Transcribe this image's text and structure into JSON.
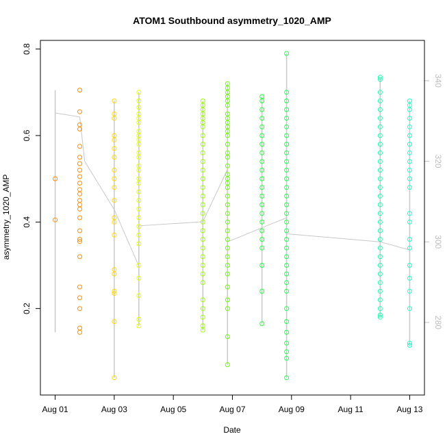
{
  "chart_data": {
    "type": "scatter",
    "title": "ATOM1 Southbound asymmetry_1020_AMP",
    "xlabel": "Date",
    "ylabel": "asymmetry_1020_AMP",
    "xlim": [
      "2024-07-31T12:00",
      "2024-08-13T12:00"
    ],
    "ylim": [
      0.0,
      0.82
    ],
    "y2lim": [
      262,
      350
    ],
    "x_ticks": [
      "Aug 01",
      "Aug 03",
      "Aug 05",
      "Aug 07",
      "Aug 09",
      "Aug 11",
      "Aug 13"
    ],
    "x_tick_dates": [
      "2024-08-01",
      "2024-08-03",
      "2024-08-05",
      "2024-08-07",
      "2024-08-09",
      "2024-08-11",
      "2024-08-13"
    ],
    "y_ticks": [
      0.2,
      0.4,
      0.6,
      0.8
    ],
    "y2_ticks": [
      280,
      300,
      320,
      340
    ],
    "grid": false,
    "secondary_line_color": "#c8c8c8",
    "series": [
      {
        "color": "#ff8c00",
        "x": [
          "2024-08-01T00:00",
          "2024-08-01T00:00",
          "2024-08-01T20:00",
          "2024-08-01T20:00",
          "2024-08-01T20:00",
          "2024-08-01T20:00",
          "2024-08-01T20:00",
          "2024-08-01T20:00",
          "2024-08-01T20:00",
          "2024-08-01T20:00",
          "2024-08-01T20:00",
          "2024-08-01T20:00",
          "2024-08-01T20:00",
          "2024-08-01T20:00",
          "2024-08-01T20:00",
          "2024-08-01T20:00",
          "2024-08-01T20:00",
          "2024-08-01T20:00",
          "2024-08-01T20:00",
          "2024-08-01T20:00",
          "2024-08-01T20:00",
          "2024-08-01T20:00",
          "2024-08-01T20:00",
          "2024-08-01T20:00",
          "2024-08-01T20:00",
          "2024-08-01T20:00",
          "2024-08-01T20:00"
        ],
        "y": [
          0.5,
          0.405,
          0.655,
          0.625,
          0.615,
          0.575,
          0.55,
          0.535,
          0.52,
          0.505,
          0.49,
          0.475,
          0.465,
          0.45,
          0.44,
          0.43,
          0.41,
          0.38,
          0.36,
          0.355,
          0.32,
          0.25,
          0.225,
          0.2,
          0.155,
          0.145,
          0.705
        ]
      },
      {
        "color": "#ffd700",
        "x": [
          "2024-08-03T00:00",
          "2024-08-03T00:00",
          "2024-08-03T00:00",
          "2024-08-03T00:00",
          "2024-08-03T00:00",
          "2024-08-03T00:00",
          "2024-08-03T00:00",
          "2024-08-03T00:00",
          "2024-08-03T00:00",
          "2024-08-03T00:00",
          "2024-08-03T00:00",
          "2024-08-03T00:00",
          "2024-08-03T00:00",
          "2024-08-03T00:00",
          "2024-08-03T00:00",
          "2024-08-03T00:00",
          "2024-08-03T00:00",
          "2024-08-03T00:00",
          "2024-08-03T00:00",
          "2024-08-03T00:00"
        ],
        "y": [
          0.68,
          0.65,
          0.64,
          0.6,
          0.59,
          0.57,
          0.55,
          0.52,
          0.5,
          0.48,
          0.45,
          0.41,
          0.4,
          0.37,
          0.29,
          0.28,
          0.24,
          0.235,
          0.17,
          0.04
        ]
      },
      {
        "color": "#e5ff00",
        "x": [
          "2024-08-03T20:00",
          "2024-08-03T20:00",
          "2024-08-03T20:00",
          "2024-08-03T20:00",
          "2024-08-03T20:00",
          "2024-08-03T20:00",
          "2024-08-03T20:00",
          "2024-08-03T20:00",
          "2024-08-03T20:00",
          "2024-08-03T20:00",
          "2024-08-03T20:00",
          "2024-08-03T20:00",
          "2024-08-03T20:00",
          "2024-08-03T20:00",
          "2024-08-03T20:00",
          "2024-08-03T20:00",
          "2024-08-03T20:00",
          "2024-08-03T20:00",
          "2024-08-03T20:00",
          "2024-08-03T20:00",
          "2024-08-03T20:00",
          "2024-08-03T20:00",
          "2024-08-03T20:00",
          "2024-08-03T20:00",
          "2024-08-03T20:00",
          "2024-08-03T20:00",
          "2024-08-03T20:00",
          "2024-08-03T20:00"
        ],
        "y": [
          0.7,
          0.68,
          0.665,
          0.65,
          0.64,
          0.63,
          0.61,
          0.6,
          0.59,
          0.58,
          0.56,
          0.55,
          0.53,
          0.52,
          0.5,
          0.49,
          0.47,
          0.45,
          0.43,
          0.41,
          0.39,
          0.37,
          0.35,
          0.3,
          0.27,
          0.23,
          0.175,
          0.16
        ]
      },
      {
        "color": "#99ff00",
        "x": [
          "2024-08-06T00:00",
          "2024-08-06T00:00",
          "2024-08-06T00:00",
          "2024-08-06T00:00",
          "2024-08-06T00:00",
          "2024-08-06T00:00",
          "2024-08-06T00:00",
          "2024-08-06T00:00",
          "2024-08-06T00:00",
          "2024-08-06T00:00",
          "2024-08-06T00:00",
          "2024-08-06T00:00",
          "2024-08-06T00:00",
          "2024-08-06T00:00",
          "2024-08-06T00:00",
          "2024-08-06T00:00",
          "2024-08-06T00:00",
          "2024-08-06T00:00",
          "2024-08-06T00:00",
          "2024-08-06T00:00",
          "2024-08-06T00:00",
          "2024-08-06T00:00",
          "2024-08-06T00:00",
          "2024-08-06T00:00",
          "2024-08-06T00:00",
          "2024-08-06T00:00",
          "2024-08-06T00:00",
          "2024-08-06T00:00",
          "2024-08-06T00:00",
          "2024-08-06T00:00"
        ],
        "y": [
          0.68,
          0.67,
          0.66,
          0.65,
          0.64,
          0.63,
          0.62,
          0.6,
          0.58,
          0.56,
          0.54,
          0.52,
          0.5,
          0.48,
          0.46,
          0.44,
          0.42,
          0.4,
          0.38,
          0.36,
          0.34,
          0.32,
          0.3,
          0.28,
          0.26,
          0.22,
          0.2,
          0.18,
          0.16,
          0.15
        ]
      },
      {
        "color": "#66ff00",
        "x": [
          "2024-08-06T20:00",
          "2024-08-06T20:00",
          "2024-08-06T20:00",
          "2024-08-06T20:00",
          "2024-08-06T20:00",
          "2024-08-06T20:00",
          "2024-08-06T20:00",
          "2024-08-06T20:00",
          "2024-08-06T20:00",
          "2024-08-06T20:00",
          "2024-08-06T20:00",
          "2024-08-06T20:00",
          "2024-08-06T20:00",
          "2024-08-06T20:00",
          "2024-08-06T20:00",
          "2024-08-06T20:00",
          "2024-08-06T20:00",
          "2024-08-06T20:00",
          "2024-08-06T20:00",
          "2024-08-06T20:00",
          "2024-08-06T20:00",
          "2024-08-06T20:00",
          "2024-08-06T20:00",
          "2024-08-06T20:00",
          "2024-08-06T20:00",
          "2024-08-06T20:00",
          "2024-08-06T20:00",
          "2024-08-06T20:00",
          "2024-08-06T20:00",
          "2024-08-06T20:00",
          "2024-08-06T20:00",
          "2024-08-06T20:00",
          "2024-08-06T20:00",
          "2024-08-06T20:00",
          "2024-08-06T20:00"
        ],
        "y": [
          0.72,
          0.71,
          0.7,
          0.69,
          0.68,
          0.67,
          0.65,
          0.64,
          0.63,
          0.62,
          0.61,
          0.6,
          0.58,
          0.56,
          0.55,
          0.53,
          0.51,
          0.5,
          0.49,
          0.48,
          0.46,
          0.44,
          0.42,
          0.4,
          0.38,
          0.36,
          0.34,
          0.32,
          0.3,
          0.28,
          0.25,
          0.22,
          0.2,
          0.135,
          0.07
        ]
      },
      {
        "color": "#1aff33",
        "x": [
          "2024-08-08T00:00",
          "2024-08-08T00:00",
          "2024-08-08T00:00",
          "2024-08-08T00:00",
          "2024-08-08T00:00",
          "2024-08-08T00:00",
          "2024-08-08T00:00",
          "2024-08-08T00:00",
          "2024-08-08T00:00",
          "2024-08-08T00:00",
          "2024-08-08T00:00",
          "2024-08-08T00:00",
          "2024-08-08T00:00",
          "2024-08-08T00:00",
          "2024-08-08T00:00",
          "2024-08-08T00:00",
          "2024-08-08T00:00",
          "2024-08-08T00:00",
          "2024-08-08T00:00",
          "2024-08-08T00:00",
          "2024-08-08T00:00",
          "2024-08-08T00:00"
        ],
        "y": [
          0.69,
          0.68,
          0.66,
          0.64,
          0.62,
          0.6,
          0.58,
          0.56,
          0.54,
          0.52,
          0.5,
          0.48,
          0.46,
          0.44,
          0.42,
          0.4,
          0.38,
          0.36,
          0.34,
          0.3,
          0.24,
          0.165
        ]
      },
      {
        "color": "#1aff4d",
        "x": [
          "2024-08-08T20:00",
          "2024-08-08T20:00",
          "2024-08-08T20:00",
          "2024-08-08T20:00",
          "2024-08-08T20:00",
          "2024-08-08T20:00",
          "2024-08-08T20:00",
          "2024-08-08T20:00",
          "2024-08-08T20:00",
          "2024-08-08T20:00",
          "2024-08-08T20:00",
          "2024-08-08T20:00",
          "2024-08-08T20:00",
          "2024-08-08T20:00",
          "2024-08-08T20:00",
          "2024-08-08T20:00",
          "2024-08-08T20:00",
          "2024-08-08T20:00",
          "2024-08-08T20:00",
          "2024-08-08T20:00",
          "2024-08-08T20:00",
          "2024-08-08T20:00",
          "2024-08-08T20:00",
          "2024-08-08T20:00",
          "2024-08-08T20:00",
          "2024-08-08T20:00",
          "2024-08-08T20:00",
          "2024-08-08T20:00",
          "2024-08-08T20:00",
          "2024-08-08T20:00",
          "2024-08-08T20:00",
          "2024-08-08T20:00"
        ],
        "y": [
          0.79,
          0.7,
          0.68,
          0.66,
          0.64,
          0.62,
          0.6,
          0.58,
          0.56,
          0.54,
          0.52,
          0.5,
          0.48,
          0.46,
          0.44,
          0.42,
          0.4,
          0.38,
          0.36,
          0.34,
          0.32,
          0.3,
          0.28,
          0.26,
          0.24,
          0.2,
          0.17,
          0.145,
          0.12,
          0.1,
          0.085,
          0.04
        ]
      },
      {
        "color": "#1affb3",
        "x": [
          "2024-08-12T00:00",
          "2024-08-12T00:00",
          "2024-08-12T00:00",
          "2024-08-12T00:00",
          "2024-08-12T00:00",
          "2024-08-12T00:00",
          "2024-08-12T00:00",
          "2024-08-12T00:00",
          "2024-08-12T00:00",
          "2024-08-12T00:00",
          "2024-08-12T00:00",
          "2024-08-12T00:00",
          "2024-08-12T00:00",
          "2024-08-12T00:00",
          "2024-08-12T00:00",
          "2024-08-12T00:00",
          "2024-08-12T00:00",
          "2024-08-12T00:00",
          "2024-08-12T00:00",
          "2024-08-12T00:00",
          "2024-08-12T00:00",
          "2024-08-12T00:00",
          "2024-08-12T00:00",
          "2024-08-12T00:00",
          "2024-08-12T00:00",
          "2024-08-12T00:00",
          "2024-08-12T00:00",
          "2024-08-12T00:00",
          "2024-08-12T00:00",
          "2024-08-12T00:00"
        ],
        "y": [
          0.735,
          0.73,
          0.7,
          0.68,
          0.66,
          0.64,
          0.62,
          0.6,
          0.58,
          0.56,
          0.54,
          0.52,
          0.5,
          0.48,
          0.46,
          0.44,
          0.42,
          0.4,
          0.38,
          0.36,
          0.34,
          0.32,
          0.3,
          0.28,
          0.26,
          0.24,
          0.22,
          0.2,
          0.185,
          0.18
        ]
      },
      {
        "color": "#1affcc",
        "x": [
          "2024-08-13T00:00",
          "2024-08-13T00:00",
          "2024-08-13T00:00",
          "2024-08-13T00:00",
          "2024-08-13T00:00",
          "2024-08-13T00:00",
          "2024-08-13T00:00",
          "2024-08-13T00:00",
          "2024-08-13T00:00",
          "2024-08-13T00:00",
          "2024-08-13T00:00",
          "2024-08-13T00:00",
          "2024-08-13T00:00",
          "2024-08-13T00:00",
          "2024-08-13T00:00",
          "2024-08-13T00:00",
          "2024-08-13T00:00",
          "2024-08-13T00:00",
          "2024-08-13T00:00",
          "2024-08-13T00:00",
          "2024-08-13T00:00",
          "2024-08-13T00:00"
        ],
        "y": [
          0.68,
          0.67,
          0.66,
          0.64,
          0.62,
          0.6,
          0.58,
          0.56,
          0.54,
          0.52,
          0.5,
          0.48,
          0.42,
          0.4,
          0.36,
          0.34,
          0.3,
          0.27,
          0.24,
          0.2,
          0.12,
          0.115
        ]
      }
    ],
    "secondary_series": {
      "x": [
        "2024-08-01T00:00",
        "2024-08-01T20:00",
        "2024-08-02T00:00",
        "2024-08-03T00:00",
        "2024-08-03T20:00",
        "2024-08-03T20:00",
        "2024-08-06T00:00",
        "2024-08-06T20:00",
        "2024-08-06T20:00",
        "2024-08-08T20:00",
        "2024-08-08T20:00",
        "2024-08-12T00:00",
        "2024-08-13T00:00"
      ],
      "y": [
        332,
        331,
        320,
        308,
        294,
        304,
        305,
        318,
        300,
        306,
        302,
        300,
        298
      ]
    }
  }
}
